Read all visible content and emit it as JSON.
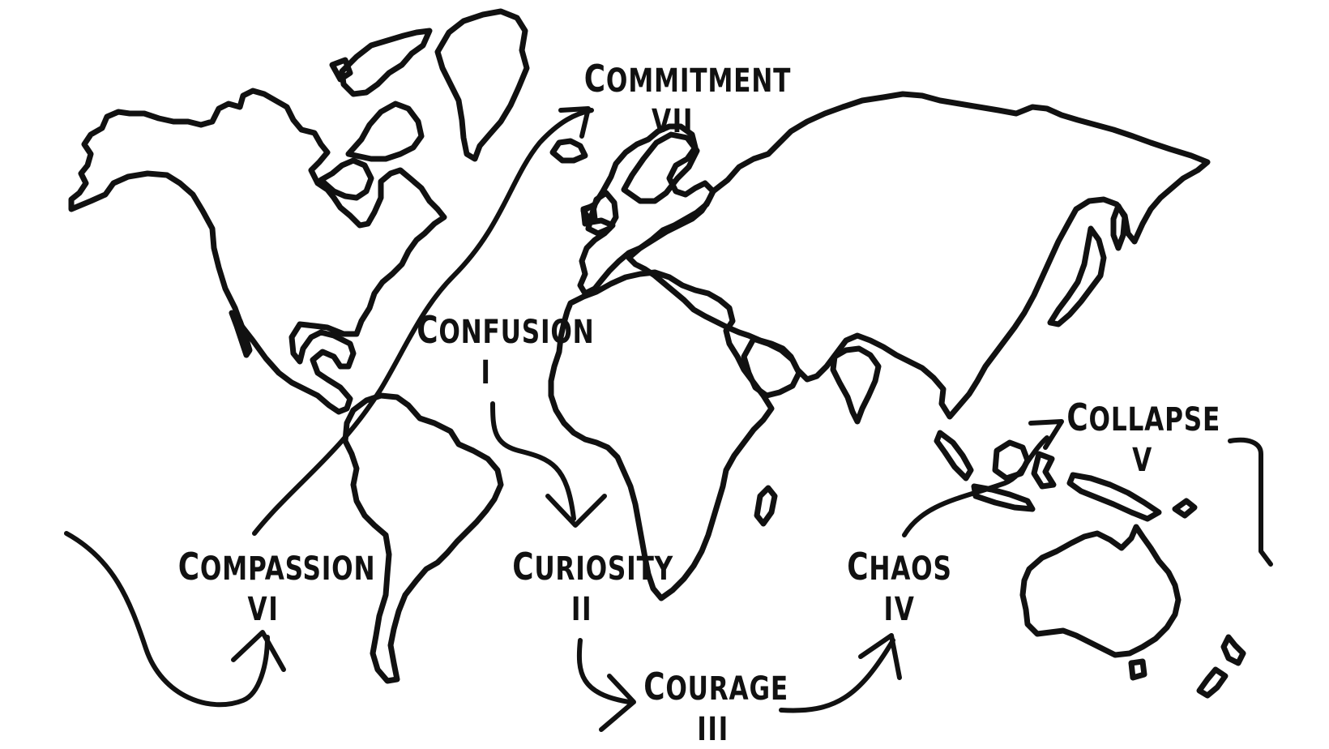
{
  "map": {
    "stroke_color": "#111111",
    "background_color": "#ffffff",
    "stages": [
      {
        "id": "confusion",
        "name": "Confusion",
        "numeral": "I"
      },
      {
        "id": "curiosity",
        "name": "Curiosity",
        "numeral": "II"
      },
      {
        "id": "courage",
        "name": "Courage",
        "numeral": "III"
      },
      {
        "id": "chaos",
        "name": "Chaos",
        "numeral": "IV"
      },
      {
        "id": "collapse",
        "name": "Collapse",
        "numeral": "V"
      },
      {
        "id": "compassion",
        "name": "Compassion",
        "numeral": "VI"
      },
      {
        "id": "commitment",
        "name": "Commitment",
        "numeral": "VII"
      }
    ]
  }
}
